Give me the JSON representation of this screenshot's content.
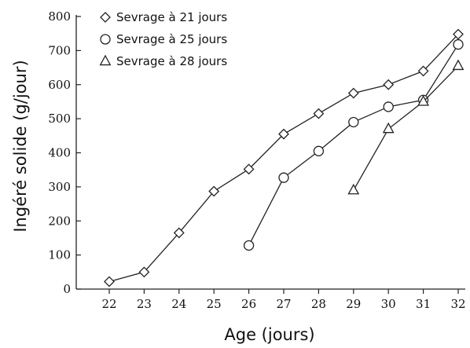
{
  "chart_data": {
    "type": "line",
    "title": "",
    "xlabel": "Age (jours)",
    "ylabel": "Ingéré solide (g/jour)",
    "xlim": [
      22,
      32
    ],
    "ylim": [
      0,
      800
    ],
    "x_ticks": [
      22,
      23,
      24,
      25,
      26,
      27,
      28,
      29,
      30,
      31,
      32
    ],
    "y_ticks": [
      0,
      100,
      200,
      300,
      400,
      500,
      600,
      700,
      800
    ],
    "grid": false,
    "legend_position": "top-left",
    "series": [
      {
        "name": "Sevrage à 21 jours",
        "marker": "diamond",
        "x": [
          22,
          23,
          24,
          25,
          26,
          27,
          28,
          29,
          30,
          31,
          32
        ],
        "y": [
          22,
          50,
          165,
          287,
          352,
          455,
          515,
          575,
          600,
          640,
          748
        ]
      },
      {
        "name": "Sevrage à 25 jours",
        "marker": "circle",
        "x": [
          26,
          27,
          28,
          29,
          30,
          31,
          32
        ],
        "y": [
          128,
          327,
          405,
          490,
          535,
          555,
          718
        ]
      },
      {
        "name": "Sevrage à 28 jours",
        "marker": "triangle",
        "x": [
          29,
          30,
          31,
          32
        ],
        "y": [
          290,
          470,
          550,
          655
        ]
      }
    ]
  }
}
